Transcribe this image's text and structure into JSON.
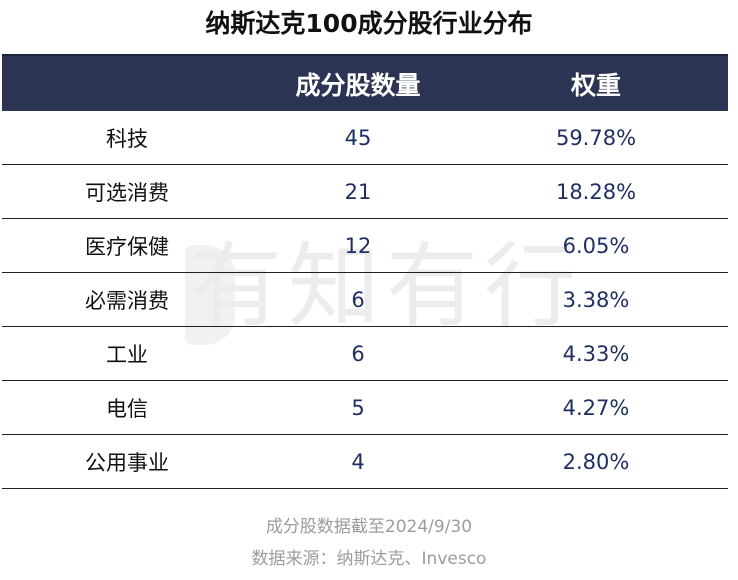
{
  "title": "纳斯达克100成分股行业分布",
  "watermark": "有知有行",
  "table": {
    "headers": [
      "",
      "成分股数量",
      "权重"
    ],
    "rows": [
      {
        "sector": "科技",
        "count": "45",
        "weight": "59.78%"
      },
      {
        "sector": "可选消费",
        "count": "21",
        "weight": "18.28%"
      },
      {
        "sector": "医疗保健",
        "count": "12",
        "weight": "6.05%"
      },
      {
        "sector": "必需消费",
        "count": "6",
        "weight": "3.38%"
      },
      {
        "sector": "工业",
        "count": "6",
        "weight": "4.33%"
      },
      {
        "sector": "电信",
        "count": "5",
        "weight": "4.27%"
      },
      {
        "sector": "公用事业",
        "count": "4",
        "weight": "2.80%"
      }
    ]
  },
  "footnotes": {
    "date_note": "成分股数据截至2024/9/30",
    "source_note": "数据来源：纳斯达克、Invesco"
  },
  "colors": {
    "header_bg": "#2b3553",
    "number_text": "#1f2f63",
    "footnote_text": "#9c9c9c"
  }
}
